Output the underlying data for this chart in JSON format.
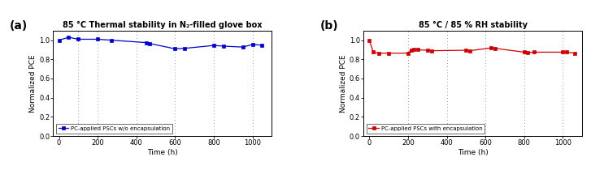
{
  "panel_a": {
    "title": "85 °C Thermal stability in N₂-filled glove box",
    "xlabel": "Time (h)",
    "ylabel": "Normalized PCE",
    "label": "PC-applied PSCs w/o encapsulation",
    "color": "#0000cc",
    "x": [
      0,
      50,
      100,
      200,
      270,
      450,
      470,
      600,
      650,
      800,
      850,
      950,
      1000,
      1050
    ],
    "y": [
      1.0,
      1.03,
      1.01,
      1.01,
      1.0,
      0.975,
      0.965,
      0.91,
      0.915,
      0.945,
      0.938,
      0.928,
      0.955,
      0.948
    ],
    "ylim": [
      0.0,
      1.1
    ],
    "xlim": [
      -30,
      1100
    ],
    "yticks": [
      0.0,
      0.2,
      0.4,
      0.6,
      0.8,
      1.0
    ],
    "xticks": [
      0,
      200,
      400,
      600,
      800,
      1000
    ],
    "vlines": [
      100,
      200,
      400,
      600,
      800,
      1000
    ],
    "panel_label": "(a)"
  },
  "panel_b": {
    "title": "85 °C / 85 % RH stability",
    "xlabel": "Time (h)",
    "ylabel": "Normalized PCE",
    "label": "PC-applied PSCs with encapsulation",
    "color": "#cc0000",
    "x": [
      0,
      20,
      50,
      100,
      200,
      215,
      230,
      250,
      300,
      320,
      500,
      520,
      630,
      650,
      800,
      820,
      850,
      1000,
      1020,
      1060
    ],
    "y": [
      1.0,
      0.875,
      0.865,
      0.865,
      0.865,
      0.895,
      0.905,
      0.9,
      0.895,
      0.89,
      0.895,
      0.89,
      0.92,
      0.915,
      0.875,
      0.87,
      0.875,
      0.875,
      0.875,
      0.865
    ],
    "ylim": [
      0.0,
      1.1
    ],
    "xlim": [
      -30,
      1100
    ],
    "yticks": [
      0.0,
      0.2,
      0.4,
      0.6,
      0.8,
      1.0
    ],
    "xticks": [
      0,
      200,
      400,
      600,
      800,
      1000
    ],
    "vlines": [
      200,
      400,
      600,
      800,
      1000
    ],
    "panel_label": "(b)"
  },
  "fig_width": 7.27,
  "fig_height": 2.1,
  "dpi": 100
}
